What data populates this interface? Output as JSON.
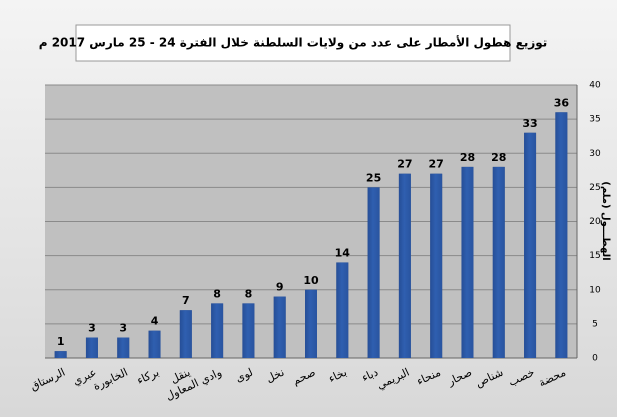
{
  "chart_data": {
    "type": "bar",
    "title": "توزيع هطول الأمطار على عدد من ولايات السلطنة خلال الفترة 24 - 25 مارس 2017 م",
    "y_label": "الهطـــول (ملم)",
    "categories": [
      "الرستاق",
      "عبري",
      "الخابورة",
      "بركاء",
      "ينقل",
      "وادي المعاول",
      "لوى",
      "نخل",
      "صحم",
      "بخاء",
      "دباء",
      "البريمي",
      "منحاء",
      "صحار",
      "شناص",
      "خصب",
      "محضة"
    ],
    "values": [
      1,
      3,
      3,
      4,
      7,
      8,
      8,
      9,
      10,
      14,
      25,
      27,
      27,
      28,
      28,
      33,
      36
    ],
    "color": "#2f5fb0",
    "ylim": [
      0,
      40
    ],
    "yticks": [
      0,
      5,
      10,
      15,
      20,
      25,
      30,
      35,
      40
    ],
    "grid": true
  }
}
